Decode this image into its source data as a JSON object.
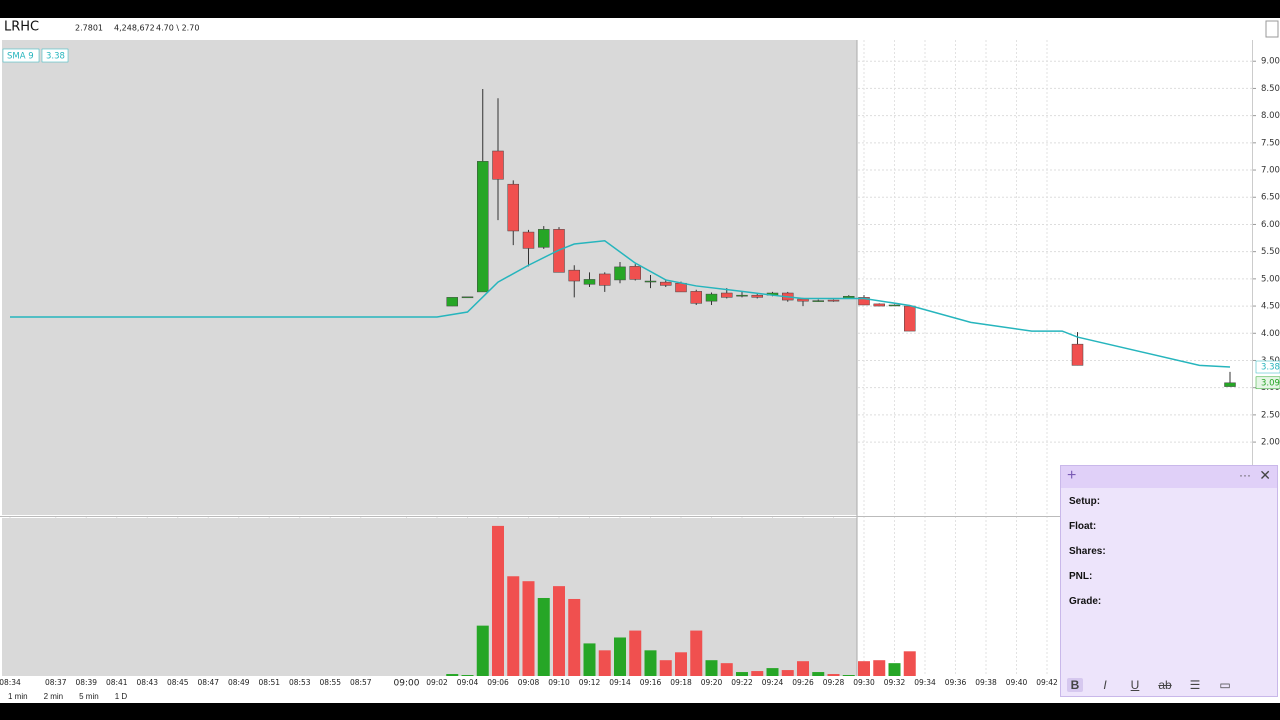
{
  "header": {
    "symbol": "LRHC",
    "last": "2.7801",
    "volume": "4,248,672",
    "range": "4.70 \\ 2.70"
  },
  "timeframes": [
    "1 min",
    "2 min",
    "5 min",
    "1 D"
  ],
  "note": {
    "fields": [
      "Setup:",
      "Float:",
      "Shares:",
      "PNL:",
      "Grade:"
    ]
  },
  "chart_data": {
    "type": "candlestick",
    "indicator": "SMA 9",
    "up_color": "#26a626",
    "down_color": "#f0504f",
    "sma_color": "#26b5bd",
    "ylim": [
      0.66,
      9.39
    ],
    "yticks": [
      {
        "value": 9,
        "label": "9.00"
      },
      {
        "value": 8.5,
        "label": "8.50"
      },
      {
        "value": 8,
        "label": "8.00"
      },
      {
        "value": 7.5,
        "label": "7.50"
      },
      {
        "value": 7,
        "label": "7.00"
      },
      {
        "value": 6.5,
        "label": "6.50"
      },
      {
        "value": 6,
        "label": "6.00"
      },
      {
        "value": 5.5,
        "label": "5.50"
      },
      {
        "value": 5,
        "label": "5.00"
      },
      {
        "value": 4.5,
        "label": "4.50"
      },
      {
        "value": 4,
        "label": "4.00"
      },
      {
        "value": 3.5,
        "label": "3.50"
      },
      {
        "value": 3,
        "label": "3.00"
      },
      {
        "value": 2.5,
        "label": "2.50"
      },
      {
        "value": 2,
        "label": "2.00"
      }
    ],
    "volume_ylim": [
      0,
      160
    ],
    "xticks": [
      "08:34",
      "08:37",
      "08:39",
      "08:41",
      "08:43",
      "08:45",
      "08:47",
      "08:49",
      "08:51",
      "08:53",
      "08:55",
      "08:57",
      "09:00",
      "09:02",
      "09:04",
      "09:06",
      "09:08",
      "09:10",
      "09:12",
      "09:14",
      "09:16",
      "09:18",
      "09:20",
      "09:22",
      "09:24",
      "09:26",
      "09:28",
      "09:30",
      "09:32",
      "09:34",
      "09:36",
      "09:38",
      "09:40",
      "09:42"
    ],
    "candles": {
      "x": [
        "09:03",
        "09:04",
        "09:05",
        "09:06",
        "09:07",
        "09:08",
        "09:09",
        "09:10",
        "09:11",
        "09:12",
        "09:13",
        "09:14",
        "09:15",
        "09:16",
        "09:17",
        "09:18",
        "09:19",
        "09:20",
        "09:21",
        "09:22",
        "09:23",
        "09:24",
        "09:25",
        "09:26",
        "09:27",
        "09:28",
        "09:29",
        "09:30",
        "09:31",
        "09:32",
        "09:33",
        "09:44",
        "09:54"
      ],
      "open": [
        4.5,
        4.67,
        4.76,
        7.35,
        6.74,
        5.86,
        5.58,
        5.91,
        5.16,
        4.9,
        5.09,
        4.98,
        5.23,
        4.96,
        4.94,
        4.92,
        4.77,
        4.59,
        4.74,
        4.7,
        4.7,
        4.7,
        4.74,
        4.63,
        4.6,
        4.61,
        4.65,
        4.66,
        4.54,
        4.52,
        4.5,
        3.8,
        3.02
      ],
      "high": [
        4.66,
        4.67,
        8.49,
        8.32,
        6.81,
        5.9,
        5.97,
        5.95,
        5.25,
        5.12,
        5.12,
        5.31,
        5.27,
        5.07,
        4.99,
        4.95,
        4.8,
        4.75,
        4.83,
        4.76,
        4.72,
        4.76,
        4.76,
        4.65,
        4.62,
        4.62,
        4.7,
        4.7,
        4.55,
        4.53,
        4.52,
        4.02,
        3.29
      ],
      "low": [
        4.5,
        4.67,
        4.76,
        6.08,
        5.62,
        5.23,
        5.55,
        5.12,
        4.66,
        4.85,
        4.76,
        4.92,
        4.97,
        4.83,
        4.85,
        4.76,
        4.52,
        4.52,
        4.64,
        4.66,
        4.64,
        4.68,
        4.58,
        4.5,
        4.58,
        4.58,
        4.63,
        4.52,
        4.5,
        4.51,
        4.04,
        3.41,
        3.02
      ],
      "close": [
        4.66,
        4.67,
        7.16,
        6.83,
        5.88,
        5.56,
        5.91,
        5.12,
        4.96,
        4.99,
        4.88,
        5.22,
        4.99,
        4.96,
        4.88,
        4.76,
        4.55,
        4.72,
        4.66,
        4.7,
        4.66,
        4.74,
        4.61,
        4.59,
        4.6,
        4.59,
        4.68,
        4.52,
        4.5,
        4.52,
        4.04,
        3.41,
        3.09
      ],
      "volume": [
        2,
        1,
        51,
        152,
        101,
        96,
        79,
        91,
        78,
        33,
        26,
        39,
        46,
        26,
        16,
        24,
        46,
        16,
        13,
        4,
        5,
        8,
        6,
        15,
        4,
        2,
        1,
        15,
        16,
        13,
        25,
        null,
        null
      ]
    },
    "sma": {
      "x": [
        "08:34",
        "09:02",
        "09:04",
        "09:06",
        "09:08",
        "09:10",
        "09:11",
        "09:13",
        "09:15",
        "09:17",
        "09:19",
        "09:22",
        "09:24",
        "09:26",
        "09:30",
        "09:33",
        "09:37",
        "09:41",
        "09:43",
        "09:44",
        "09:52",
        "09:54"
      ],
      "values": [
        4.3,
        4.3,
        4.39,
        4.94,
        5.25,
        5.53,
        5.64,
        5.7,
        5.29,
        4.98,
        4.87,
        4.77,
        4.7,
        4.64,
        4.64,
        4.51,
        4.2,
        4.04,
        4.04,
        3.93,
        3.41,
        3.38
      ]
    }
  }
}
